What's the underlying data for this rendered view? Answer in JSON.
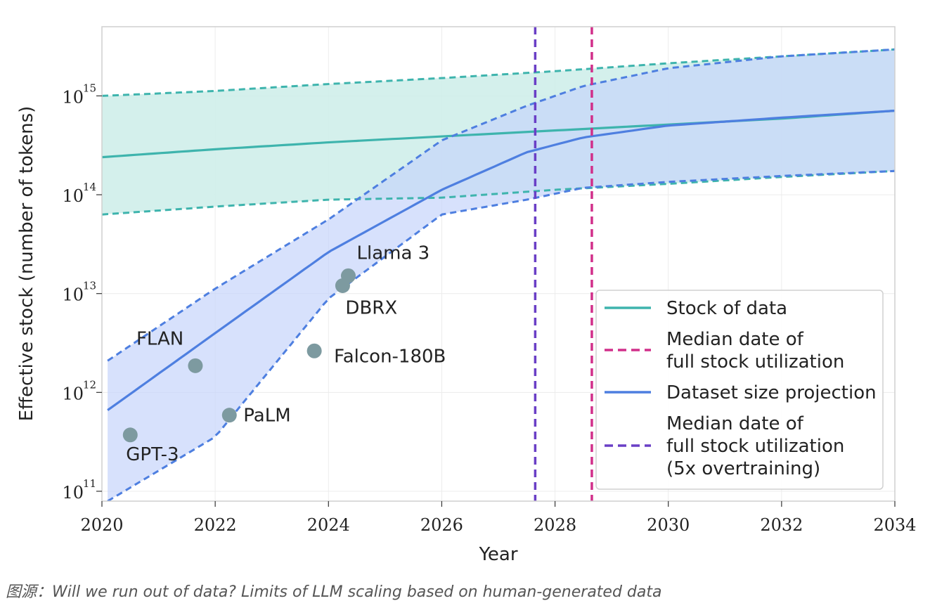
{
  "chart_data": {
    "type": "line",
    "title": "",
    "xlabel": "Year",
    "ylabel": "Effective stock (number of tokens)",
    "xlim": [
      2020,
      2034
    ],
    "ylim_log10": [
      10.9,
      15.7
    ],
    "yscale": "log",
    "x_ticks": [
      "2020",
      "2022",
      "2024",
      "2026",
      "2028",
      "2030",
      "2032",
      "2034"
    ],
    "y_ticks": [
      {
        "base": "10",
        "exp": "11",
        "log10": 11
      },
      {
        "base": "10",
        "exp": "12",
        "log10": 12
      },
      {
        "base": "10",
        "exp": "13",
        "log10": 13
      },
      {
        "base": "10",
        "exp": "14",
        "log10": 14
      },
      {
        "base": "10",
        "exp": "15",
        "log10": 15
      }
    ],
    "grid": true,
    "colors": {
      "stock": "#3eb4ad",
      "stock_fill": "#cfeeea",
      "projection": "#4e7fe0",
      "projection_fill": "#c6d4fb",
      "overlap_fill": "#b7d9ee",
      "median_date": "#d12f8a",
      "median_date_5x": "#6a3fc6",
      "models": "#7d9aa0"
    },
    "series": [
      {
        "name": "Stock of data",
        "style": "solid",
        "x": [
          2020,
          2022,
          2024,
          2026,
          2028,
          2030,
          2032,
          2034
        ],
        "y_log10": [
          14.38,
          14.46,
          14.53,
          14.59,
          14.65,
          14.71,
          14.77,
          14.85
        ],
        "lower_log10": [
          13.8,
          13.88,
          13.95,
          13.97,
          14.05,
          14.11,
          14.18,
          14.24
        ],
        "upper_log10": [
          15.0,
          15.05,
          15.12,
          15.18,
          15.25,
          15.33,
          15.4,
          15.47
        ]
      },
      {
        "name": "Dataset size projection",
        "style": "solid",
        "x": [
          2020.1,
          2022,
          2024,
          2026,
          2027.5,
          2028.5,
          2030,
          2032,
          2034
        ],
        "y_log10": [
          11.82,
          12.6,
          13.42,
          14.05,
          14.43,
          14.58,
          14.7,
          14.78,
          14.85
        ],
        "lower_log10": [
          10.9,
          11.55,
          12.95,
          13.8,
          13.95,
          14.07,
          14.13,
          14.19,
          14.24
        ],
        "upper_log10": [
          12.32,
          13.05,
          13.75,
          14.55,
          14.9,
          15.1,
          15.28,
          15.4,
          15.47
        ]
      }
    ],
    "vlines": [
      {
        "name": "Median date of full stock utilization (5x overtraining)",
        "x": 2027.65
      },
      {
        "name": "Median date of full stock utilization",
        "x": 2028.65
      }
    ],
    "points": [
      {
        "label": "GPT-3",
        "x": 2020.5,
        "y_log10": 11.57
      },
      {
        "label": "FLAN",
        "x": 2021.65,
        "y_log10": 12.27
      },
      {
        "label": "PaLM",
        "x": 2022.25,
        "y_log10": 11.77
      },
      {
        "label": "Falcon-180B",
        "x": 2023.75,
        "y_log10": 12.42
      },
      {
        "label": "DBRX",
        "x": 2024.25,
        "y_log10": 13.08
      },
      {
        "label": "Llama 3",
        "x": 2024.35,
        "y_log10": 13.18
      }
    ],
    "legend": {
      "placement": "bottom-right",
      "entries": [
        {
          "lines": [
            "Stock of data"
          ],
          "style": "solid",
          "color": "#3eb4ad"
        },
        {
          "lines": [
            "Median date of",
            "full stock utilization"
          ],
          "style": "dashed",
          "color": "#d12f8a"
        },
        {
          "lines": [
            "Dataset size projection"
          ],
          "style": "solid",
          "color": "#4e7fe0"
        },
        {
          "lines": [
            "Median date of",
            "full stock utilization",
            "(5x overtraining)"
          ],
          "style": "dashed",
          "color": "#6a3fc6"
        }
      ]
    }
  },
  "caption": "图源：Will we run out of data? Limits of LLM scaling based on human-generated data"
}
